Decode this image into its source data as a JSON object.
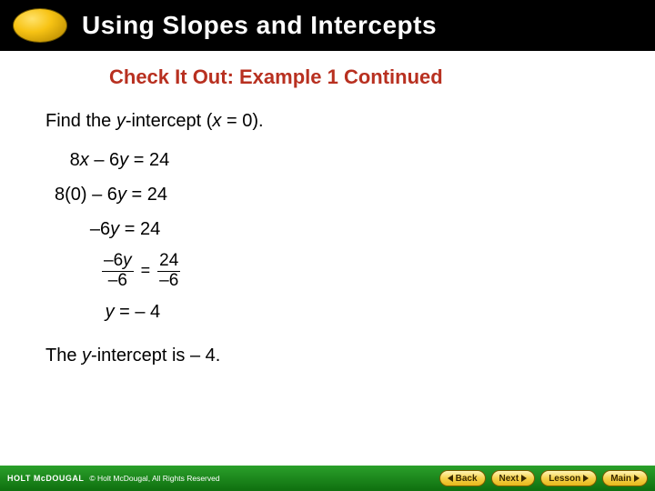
{
  "header": {
    "title": "Using Slopes and Intercepts",
    "oval_gradient": [
      "#ffe26b",
      "#f7c314",
      "#b88a00"
    ]
  },
  "subtitle": "Check It Out: Example 1 Continued",
  "instruction": {
    "prefix": "Find the ",
    "ital1": "y",
    "mid": "-intercept (",
    "ital2": "x",
    "suffix": " = 0)."
  },
  "equations": {
    "line1": {
      "a": "   8",
      "x": "x",
      "b": " – 6",
      "y": "y",
      "c": " = 24"
    },
    "line2": {
      "a": "8(0) – 6",
      "y": "y",
      "c": " = 24"
    },
    "line3": {
      "a": "       –6",
      "y": "y",
      "c": " = 24"
    },
    "frac": {
      "num1_a": "–6",
      "num1_y": "y",
      "den1": "–6",
      "num2": "24",
      "den2": "–6",
      "eq": "="
    },
    "line5": {
      "pad": "          ",
      "y": "y",
      "c": " = – 4"
    }
  },
  "conclusion": {
    "prefix": "The ",
    "ital": "y",
    "suffix": "-intercept is – 4."
  },
  "footer": {
    "logo": "HOLT McDOUGAL",
    "copyright": "© Holt McDougal, All Rights Reserved",
    "buttons": {
      "back": "Back",
      "next": "Next",
      "lesson": "Lesson",
      "main": "Main"
    }
  },
  "colors": {
    "subtitle": "#b83020",
    "footer_grad": [
      "#2aa02a",
      "#0f6f0f"
    ],
    "pill_grad": [
      "#fff6b8",
      "#f6d24a",
      "#e6b81a"
    ]
  }
}
